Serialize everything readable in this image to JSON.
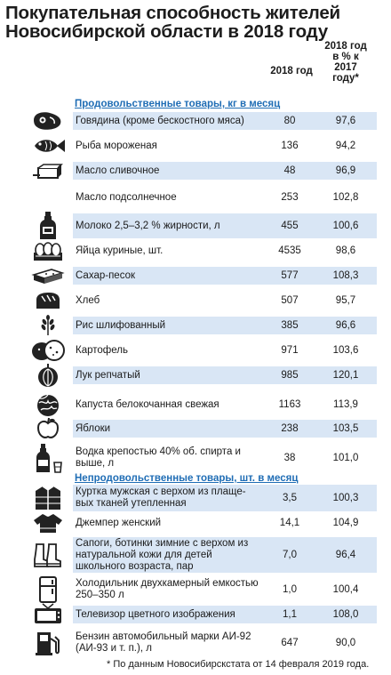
{
  "title": "Покупательная способность жителей Новосибирской области в 2018 году",
  "columns": {
    "year": "2018 год",
    "pct": "2018 год в % к 2017 году*"
  },
  "sections": {
    "food": "Продовольственные товары, кг в месяц",
    "nonfood": "Непродовольственные товары, шт. в месяц"
  },
  "food_rows": [
    {
      "label": "Говядина (кроме бескостного мяса)",
      "v2018": "80",
      "pct": "97,6",
      "icon": "meat-icon"
    },
    {
      "label": "Рыба мороженая",
      "v2018": "136",
      "pct": "94,2",
      "icon": "fish-icon"
    },
    {
      "label": "Масло сливочное",
      "v2018": "48",
      "pct": "96,9",
      "icon": "butter-icon"
    },
    {
      "label": "Масло подсолнечное",
      "v2018": "253",
      "pct": "102,8",
      "icon": ""
    },
    {
      "label": "Молоко 2,5–3,2 % жирности, л",
      "v2018": "455",
      "pct": "100,6",
      "icon": "milk-bottle-icon"
    },
    {
      "label": "Яйца куриные, шт.",
      "v2018": "4535",
      "pct": "98,6",
      "icon": "eggs-icon"
    },
    {
      "label": "Сахар-песок",
      "v2018": "577",
      "pct": "108,3",
      "icon": "sugar-icon"
    },
    {
      "label": "Хлеб",
      "v2018": "507",
      "pct": "95,7",
      "icon": "bread-icon"
    },
    {
      "label": "Рис шлифованный",
      "v2018": "385",
      "pct": "96,6",
      "icon": "rice-icon"
    },
    {
      "label": "Картофель",
      "v2018": "971",
      "pct": "103,6",
      "icon": "potato-icon"
    },
    {
      "label": "Лук репчатый",
      "v2018": "985",
      "pct": "120,1",
      "icon": "onion-icon"
    },
    {
      "label": "Капуста белокочанная свежая",
      "v2018": "1163",
      "pct": "113,9",
      "icon": "cabbage-icon"
    },
    {
      "label": "Яблоки",
      "v2018": "238",
      "pct": "103,5",
      "icon": "apple-icon"
    },
    {
      "label": "Водка крепостью 40% об. спирта и выше, л",
      "v2018": "38",
      "pct": "101,0",
      "icon": "vodka-icon"
    }
  ],
  "nonfood_rows": [
    {
      "label": "Куртка мужская с верхом из плаще-вых тканей утепленная",
      "v2018": "3,5",
      "pct": "100,3",
      "icon": "jacket-icon"
    },
    {
      "label": "Джемпер женский",
      "v2018": "14,1",
      "pct": "104,9",
      "icon": "sweater-icon"
    },
    {
      "label": "Сапоги, ботинки зимние с верхом из натуральной кожи для детей школьного возраста, пар",
      "v2018": "7,0",
      "pct": "96,4",
      "icon": "boots-icon"
    },
    {
      "label": "Холодильник двухкамерный емкостью 250–350 л",
      "v2018": "1,0",
      "pct": "100,4",
      "icon": "fridge-icon"
    },
    {
      "label": "Телевизор цветного изображения",
      "v2018": "1,1",
      "pct": "108,0",
      "icon": "tv-icon"
    },
    {
      "label": "Бензин автомобильный марки АИ-92 (АИ-93 и т. п.), л",
      "v2018": "647",
      "pct": "90,0",
      "icon": "fuel-pump-icon"
    }
  ],
  "footnote": "* По данным Новосибирскстата от 14 февраля 2019 года."
}
